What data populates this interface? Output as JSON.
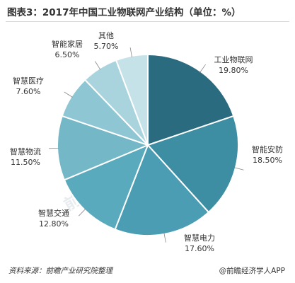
{
  "title": "图表3：2017年中国工业物联网产业结构（单位：%）",
  "chart_data": {
    "type": "pie",
    "title": "图表3：2017年中国工业物联网产业结构（单位：%）",
    "unit": "%",
    "slices": [
      {
        "label": "工业物联网",
        "value": 19.8,
        "display": "19.80%",
        "color": "#2b6b80"
      },
      {
        "label": "智能安防",
        "value": 18.5,
        "display": "18.50%",
        "color": "#3d8ea3"
      },
      {
        "label": "智慧电力",
        "value": 17.6,
        "display": "17.60%",
        "color": "#4a9db3"
      },
      {
        "label": "智慧交通",
        "value": 12.8,
        "display": "12.80%",
        "color": "#5aaabd"
      },
      {
        "label": "智慧物流",
        "value": 11.5,
        "display": "11.50%",
        "color": "#74b8c8"
      },
      {
        "label": "智慧医疗",
        "value": 7.6,
        "display": "7.60%",
        "color": "#8ec6d3"
      },
      {
        "label": "智能家居",
        "value": 6.5,
        "display": "6.50%",
        "color": "#a9d4de"
      },
      {
        "label": "其他",
        "value": 5.7,
        "display": "5.70%",
        "color": "#c5e2e9"
      }
    ]
  },
  "footer": {
    "source": "资料来源：前瞻产业研究院整理",
    "credit": "@前瞻经济学人APP"
  }
}
